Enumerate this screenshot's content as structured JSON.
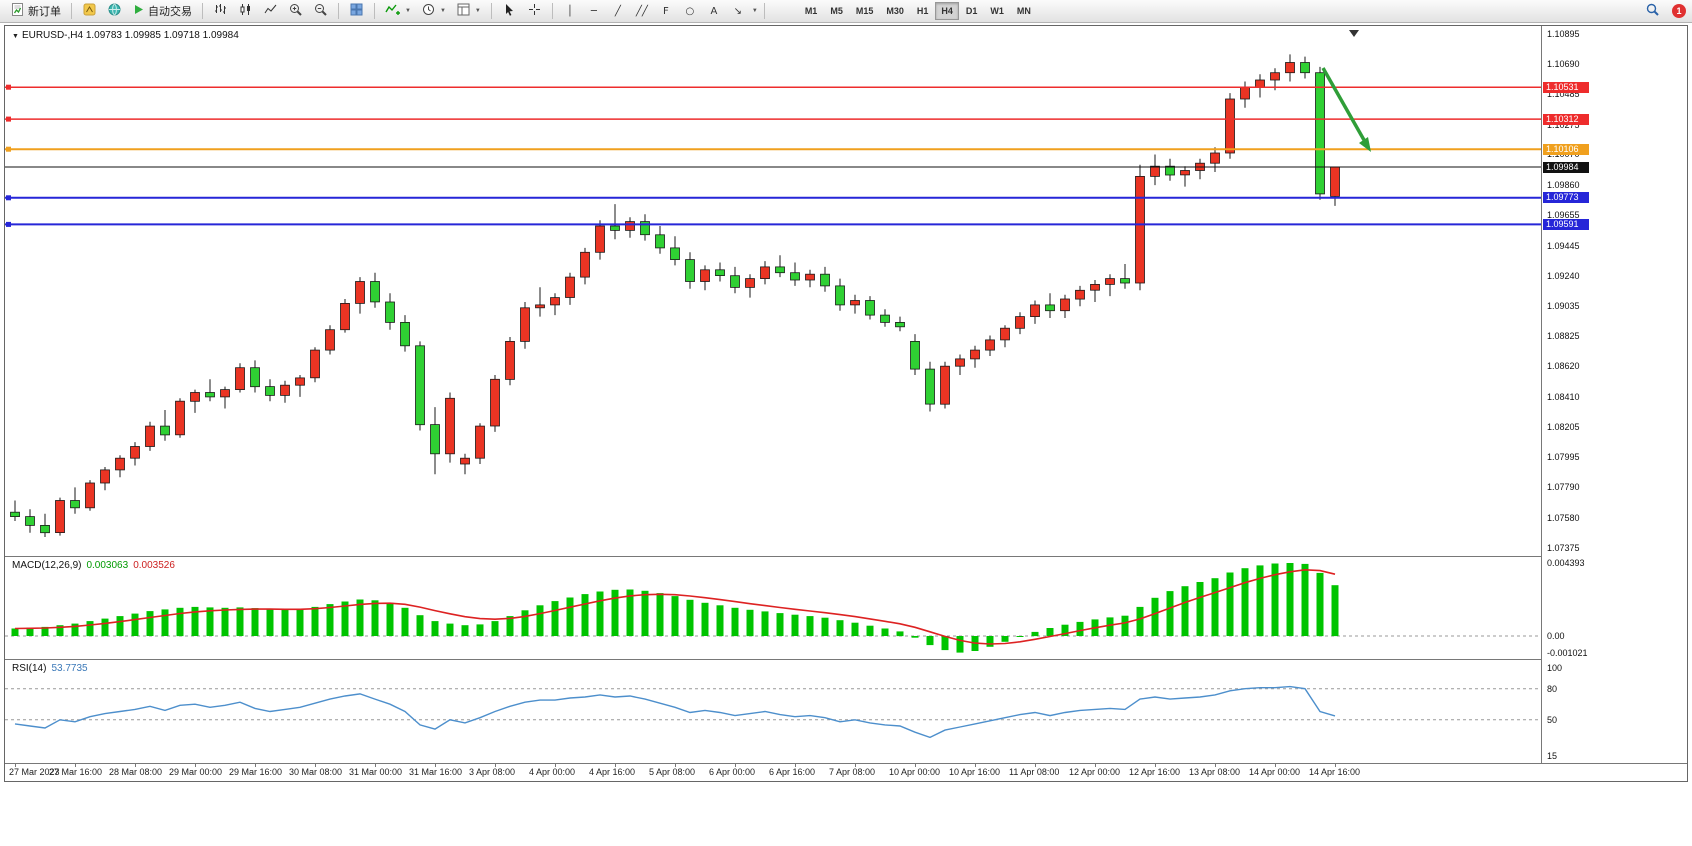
{
  "toolbar": {
    "new_order_label": "新订单",
    "auto_trading_label": "自动交易",
    "timeframes": [
      "M1",
      "M5",
      "M15",
      "M30",
      "H1",
      "H4",
      "D1",
      "W1",
      "MN"
    ],
    "active_timeframe": "H4",
    "line_tools": [
      {
        "name": "vertical-line",
        "glyph": "│"
      },
      {
        "name": "horizontal-line",
        "glyph": "─"
      },
      {
        "name": "trendline",
        "glyph": "╱"
      },
      {
        "name": "equidistant-channel",
        "glyph": "╱╱"
      },
      {
        "name": "fibonacci-retracement",
        "glyph": "F"
      },
      {
        "name": "ellipse",
        "glyph": "○"
      },
      {
        "name": "text",
        "glyph": "A"
      },
      {
        "name": "arrow-object",
        "glyph": "↘"
      }
    ],
    "notification_count": "1"
  },
  "chart": {
    "title": "EURUSD-,H4",
    "ohlc_text": "1.09783 1.09985 1.09718 1.09984",
    "price_max": 1.10895,
    "price_min": 1.07375,
    "price_axis": [
      "1.10895",
      "1.10690",
      "1.10485",
      "1.10275",
      "1.10070",
      "1.09860",
      "1.09655",
      "1.09445",
      "1.09240",
      "1.09035",
      "1.08825",
      "1.08620",
      "1.08410",
      "1.08205",
      "1.07995",
      "1.07790",
      "1.07580",
      "1.07375"
    ],
    "hlines": [
      {
        "price": 1.10531,
        "label": "1.10531",
        "color": "#ee2c2c",
        "width": 1.5,
        "handle": true
      },
      {
        "price": 1.10312,
        "label": "1.10312",
        "color": "#ee2c2c",
        "width": 1.5,
        "handle": true
      },
      {
        "price": 1.10106,
        "label": "1.10106",
        "color": "#f0a01e",
        "width": 2,
        "handle": true
      },
      {
        "price": 1.09984,
        "label": "1.09984",
        "color": "#111111",
        "width": 1,
        "handle": false
      },
      {
        "price": 1.09773,
        "label": "1.09773",
        "color": "#2626d8",
        "width": 2,
        "handle": true
      },
      {
        "price": 1.09591,
        "label": "1.09591",
        "color": "#2626d8",
        "width": 2,
        "handle": true
      }
    ],
    "arrow_color": "#2f9e38",
    "time_axis": [
      "27 Mar 2023",
      "27 Mar 16:00",
      "28 Mar 08:00",
      "29 Mar 00:00",
      "29 Mar 16:00",
      "30 Mar 08:00",
      "31 Mar 00:00",
      "31 Mar 16:00",
      "3 Apr 08:00",
      "4 Apr 00:00",
      "4 Apr 16:00",
      "5 Apr 08:00",
      "6 Apr 00:00",
      "6 Apr 16:00",
      "7 Apr 08:00",
      "10 Apr 00:00",
      "10 Apr 16:00",
      "11 Apr 08:00",
      "12 Apr 00:00",
      "12 Apr 16:00",
      "13 Apr 08:00",
      "14 Apr 00:00",
      "14 Apr 16:00"
    ]
  },
  "chart_data": {
    "type": "candlestick",
    "symbol": "EURUSD-",
    "timeframe": "H4",
    "up_color": "#ea3423",
    "down_color": "#2fd033",
    "candles": [
      [
        1.0762,
        1.077,
        1.0756,
        1.0759
      ],
      [
        1.0759,
        1.0764,
        1.0748,
        1.0753
      ],
      [
        1.0753,
        1.0761,
        1.0745,
        1.0748
      ],
      [
        1.0748,
        1.0772,
        1.0746,
        1.077
      ],
      [
        1.077,
        1.0779,
        1.0761,
        1.0765
      ],
      [
        1.0765,
        1.0784,
        1.0763,
        1.0782
      ],
      [
        1.0782,
        1.0793,
        1.0777,
        1.0791
      ],
      [
        1.0791,
        1.0801,
        1.0786,
        1.0799
      ],
      [
        1.0799,
        1.081,
        1.0794,
        1.0807
      ],
      [
        1.0807,
        1.0824,
        1.0804,
        1.0821
      ],
      [
        1.0821,
        1.0832,
        1.0811,
        1.0815
      ],
      [
        1.0815,
        1.084,
        1.0813,
        1.0838
      ],
      [
        1.0838,
        1.0846,
        1.083,
        1.0844
      ],
      [
        1.0844,
        1.0853,
        1.0838,
        1.0841
      ],
      [
        1.0841,
        1.0848,
        1.0833,
        1.0846
      ],
      [
        1.0846,
        1.0864,
        1.0844,
        1.0861
      ],
      [
        1.0861,
        1.0866,
        1.0844,
        1.0848
      ],
      [
        1.0848,
        1.0853,
        1.0838,
        1.0842
      ],
      [
        1.0842,
        1.0852,
        1.0837,
        1.0849
      ],
      [
        1.0849,
        1.0856,
        1.0841,
        1.0854
      ],
      [
        1.0854,
        1.0875,
        1.0851,
        1.0873
      ],
      [
        1.0873,
        1.089,
        1.087,
        1.0887
      ],
      [
        1.0887,
        1.0908,
        1.0885,
        1.0905
      ],
      [
        1.0905,
        1.0923,
        1.0898,
        1.092
      ],
      [
        1.092,
        1.0926,
        1.0902,
        1.0906
      ],
      [
        1.0906,
        1.0912,
        1.0887,
        1.0892
      ],
      [
        1.0892,
        1.0897,
        1.0872,
        1.0876
      ],
      [
        1.0876,
        1.0879,
        1.0818,
        1.0822
      ],
      [
        1.0822,
        1.0834,
        1.0788,
        1.0802
      ],
      [
        1.0802,
        1.0844,
        1.0796,
        1.084
      ],
      [
        1.0795,
        1.0802,
        1.0788,
        1.0799
      ],
      [
        1.0799,
        1.0823,
        1.0795,
        1.0821
      ],
      [
        1.0821,
        1.0856,
        1.0817,
        1.0853
      ],
      [
        1.0853,
        1.0882,
        1.0849,
        1.0879
      ],
      [
        1.0879,
        1.0906,
        1.0874,
        1.0902
      ],
      [
        1.0902,
        1.0916,
        1.0896,
        1.0904
      ],
      [
        1.0904,
        1.0912,
        1.0897,
        1.0909
      ],
      [
        1.0909,
        1.0926,
        1.0904,
        1.0923
      ],
      [
        1.0923,
        1.0943,
        1.0918,
        1.094
      ],
      [
        1.094,
        1.0962,
        1.0935,
        1.0958
      ],
      [
        1.0958,
        1.0973,
        1.0949,
        1.0955
      ],
      [
        1.0955,
        1.0964,
        1.095,
        1.0961
      ],
      [
        1.0961,
        1.0966,
        1.0948,
        1.0952
      ],
      [
        1.0952,
        1.0958,
        1.0939,
        1.0943
      ],
      [
        1.0943,
        1.0951,
        1.0931,
        1.0935
      ],
      [
        1.0935,
        1.094,
        1.0915,
        1.092
      ],
      [
        1.092,
        1.0931,
        1.0914,
        1.0928
      ],
      [
        1.0928,
        1.0933,
        1.092,
        1.0924
      ],
      [
        1.0924,
        1.093,
        1.0912,
        1.0916
      ],
      [
        1.0916,
        1.0925,
        1.0909,
        1.0922
      ],
      [
        1.0922,
        1.0934,
        1.0918,
        1.093
      ],
      [
        1.093,
        1.0938,
        1.0923,
        1.0926
      ],
      [
        1.0926,
        1.0933,
        1.0917,
        1.0921
      ],
      [
        1.0921,
        1.0928,
        1.0916,
        1.0925
      ],
      [
        1.0925,
        1.093,
        1.0913,
        1.0917
      ],
      [
        1.0917,
        1.0922,
        1.09,
        1.0904
      ],
      [
        1.0904,
        1.0911,
        1.0898,
        1.0907
      ],
      [
        1.0907,
        1.091,
        1.0894,
        1.0897
      ],
      [
        1.0897,
        1.0901,
        1.0889,
        1.0892
      ],
      [
        1.0892,
        1.0896,
        1.0886,
        1.0889
      ],
      [
        1.0879,
        1.0884,
        1.0856,
        1.086
      ],
      [
        1.086,
        1.0865,
        1.0831,
        1.0836
      ],
      [
        1.0836,
        1.0865,
        1.0833,
        1.0862
      ],
      [
        1.0862,
        1.087,
        1.0856,
        1.0867
      ],
      [
        1.0867,
        1.0876,
        1.0861,
        1.0873
      ],
      [
        1.0873,
        1.0883,
        1.0869,
        1.088
      ],
      [
        1.088,
        1.089,
        1.0875,
        1.0888
      ],
      [
        1.0888,
        1.0899,
        1.0884,
        1.0896
      ],
      [
        1.0896,
        1.0907,
        1.0891,
        1.0904
      ],
      [
        1.0904,
        1.0912,
        1.0895,
        1.09
      ],
      [
        1.09,
        1.0911,
        1.0895,
        1.0908
      ],
      [
        1.0908,
        1.0917,
        1.0903,
        1.0914
      ],
      [
        1.0914,
        1.0921,
        1.0906,
        1.0918
      ],
      [
        1.0918,
        1.0925,
        1.091,
        1.0922
      ],
      [
        1.0922,
        1.0932,
        1.0915,
        1.0919
      ],
      [
        1.0919,
        1.1,
        1.0914,
        1.0992
      ],
      [
        1.0992,
        1.1007,
        1.0986,
        1.0999
      ],
      [
        1.0999,
        1.1004,
        1.0989,
        1.0993
      ],
      [
        1.0993,
        1.0999,
        1.0985,
        1.0996
      ],
      [
        1.0996,
        1.1004,
        1.099,
        1.1001
      ],
      [
        1.1001,
        1.1012,
        1.0995,
        1.1008
      ],
      [
        1.1008,
        1.1049,
        1.1004,
        1.1045
      ],
      [
        1.1045,
        1.1057,
        1.1039,
        1.1053
      ],
      [
        1.1053,
        1.1062,
        1.1046,
        1.1058
      ],
      [
        1.1058,
        1.1066,
        1.1051,
        1.1063
      ],
      [
        1.1063,
        1.10755,
        1.1057,
        1.107
      ],
      [
        1.107,
        1.1074,
        1.1059,
        1.1063
      ],
      [
        1.1063,
        1.1067,
        1.0976,
        1.098
      ],
      [
        1.09783,
        1.09985,
        1.09718,
        1.09984
      ]
    ],
    "macd": {
      "label": "MACD(12,26,9)",
      "value_text": "0.003063",
      "signal_text": "0.003526",
      "max": 0.004393,
      "min": -0.001021,
      "scale": [
        "0.004393",
        "0.00",
        "-0.001021"
      ],
      "hist_color": "#00c400",
      "signal_color": "#dd2222",
      "values": [
        0.00045,
        0.0005,
        0.00055,
        0.00065,
        0.00075,
        0.0009,
        0.00105,
        0.0012,
        0.00135,
        0.0015,
        0.0016,
        0.0017,
        0.00175,
        0.00172,
        0.0017,
        0.00172,
        0.00168,
        0.0016,
        0.00158,
        0.00162,
        0.00175,
        0.00192,
        0.00208,
        0.0022,
        0.00215,
        0.002,
        0.0017,
        0.00125,
        0.0009,
        0.00075,
        0.00065,
        0.0007,
        0.0009,
        0.0012,
        0.00155,
        0.00185,
        0.0021,
        0.00232,
        0.00252,
        0.00268,
        0.00278,
        0.0028,
        0.00272,
        0.00258,
        0.0024,
        0.00218,
        0.002,
        0.00185,
        0.0017,
        0.00158,
        0.00148,
        0.00138,
        0.00128,
        0.0012,
        0.0011,
        0.00095,
        0.0008,
        0.00062,
        0.00045,
        0.00028,
        -0.0001,
        -0.00055,
        -0.00085,
        -0.001,
        -0.0009,
        -0.00065,
        -0.00035,
        -5e-05,
        0.00025,
        0.00048,
        0.00068,
        0.00085,
        0.001,
        0.00112,
        0.00122,
        0.00175,
        0.0023,
        0.0027,
        0.003,
        0.00325,
        0.00348,
        0.00382,
        0.00408,
        0.00425,
        0.00436,
        0.00439,
        0.00434,
        0.0038,
        0.00306
      ]
    },
    "rsi": {
      "label": "RSI(14)",
      "value_text": "53.7735",
      "max": 100,
      "min": 15,
      "scale": [
        "100",
        "80",
        "50",
        "15"
      ],
      "levels": [
        80,
        50
      ],
      "color": "#4d8fcc",
      "values": [
        46,
        44,
        42,
        50,
        48,
        53,
        56,
        58,
        60,
        63,
        59,
        64,
        65,
        62,
        64,
        67,
        61,
        58,
        60,
        62,
        66,
        70,
        73,
        75,
        70,
        65,
        58,
        45,
        41,
        50,
        47,
        52,
        58,
        63,
        67,
        69,
        69,
        71,
        72,
        74,
        72,
        73,
        70,
        66,
        62,
        57,
        59,
        57,
        54,
        56,
        58,
        55,
        53,
        54,
        52,
        48,
        50,
        47,
        45,
        44,
        38,
        33,
        40,
        43,
        46,
        49,
        52,
        55,
        57,
        54,
        57,
        59,
        60,
        61,
        60,
        70,
        72,
        70,
        71,
        72,
        74,
        78,
        80,
        81,
        81,
        82,
        80,
        58,
        53.77
      ]
    }
  }
}
